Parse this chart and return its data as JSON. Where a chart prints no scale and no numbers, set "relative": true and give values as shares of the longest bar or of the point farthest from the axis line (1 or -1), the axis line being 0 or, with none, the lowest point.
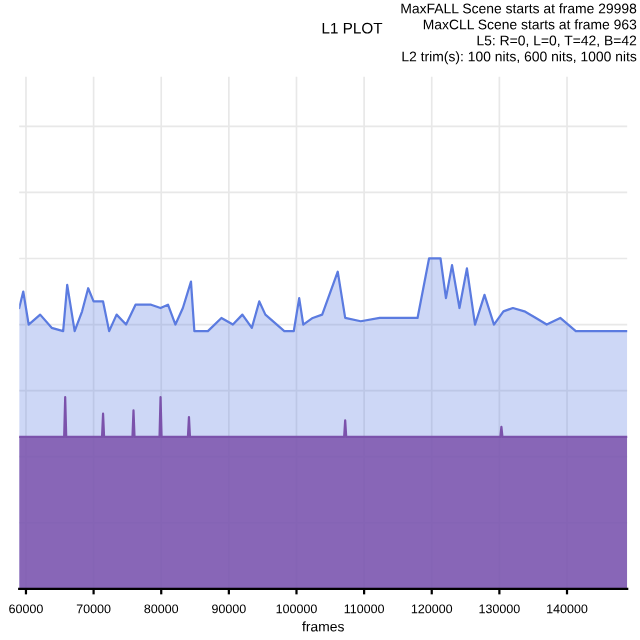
{
  "chart_data": {
    "type": "area",
    "title": "L1 PLOT",
    "xlabel": "frames",
    "relative": true,
    "grid": true,
    "annotations": [
      "MaxFALL Scene starts at frame 29998",
      "MaxCLL Scene starts at frame 963",
      "L5: R=0, L=0, T=42, B=42",
      "L2 trim(s): 100 nits, 600 nits, 1000 nits"
    ],
    "xlim": [
      59000,
      148900
    ],
    "xticks": [
      60000,
      70000,
      80000,
      90000,
      100000,
      110000,
      120000,
      130000,
      140000
    ],
    "series": [
      {
        "color": "#5b7be0",
        "x": [
          59000,
          59600,
          60400,
          62100,
          63800,
          65500,
          66100,
          67200,
          68300,
          69200,
          70000,
          71400,
          72300,
          73400,
          74800,
          76200,
          78500,
          79900,
          81000,
          82100,
          83200,
          84400,
          84900,
          86900,
          88900,
          90600,
          92000,
          93400,
          94500,
          95400,
          98200,
          99600,
          100400,
          101000,
          102400,
          103800,
          106100,
          107200,
          109500,
          112300,
          115100,
          117900,
          119600,
          121300,
          122100,
          123000,
          124100,
          125200,
          126400,
          127800,
          129200,
          130600,
          132000,
          133700,
          135400,
          137000,
          139000,
          141300,
          143200,
          148900
        ],
        "values": [
          0.85,
          0.9,
          0.8,
          0.83,
          0.79,
          0.78,
          0.92,
          0.78,
          0.84,
          0.91,
          0.87,
          0.87,
          0.78,
          0.83,
          0.8,
          0.86,
          0.86,
          0.85,
          0.86,
          0.8,
          0.85,
          0.93,
          0.78,
          0.78,
          0.82,
          0.8,
          0.83,
          0.79,
          0.87,
          0.83,
          0.78,
          0.78,
          0.88,
          0.8,
          0.82,
          0.83,
          0.96,
          0.82,
          0.81,
          0.82,
          0.82,
          0.82,
          1.0,
          1.0,
          0.88,
          0.98,
          0.85,
          0.97,
          0.8,
          0.89,
          0.8,
          0.84,
          0.85,
          0.84,
          0.82,
          0.8,
          0.82,
          0.78,
          0.78,
          0.78
        ]
      },
      {
        "color": "#7b52ab",
        "x": [
          59000,
          65650,
          65800,
          65950,
          71250,
          71400,
          71550,
          75750,
          75900,
          76050,
          79750,
          79900,
          80050,
          83950,
          84100,
          84250,
          107050,
          107200,
          107350,
          130150,
          130300,
          130450,
          148900
        ],
        "values": [
          0.46,
          0.46,
          0.58,
          0.46,
          0.46,
          0.53,
          0.46,
          0.46,
          0.54,
          0.46,
          0.46,
          0.58,
          0.46,
          0.46,
          0.52,
          0.46,
          0.46,
          0.51,
          0.46,
          0.46,
          0.49,
          0.46,
          0.46
        ]
      }
    ]
  }
}
